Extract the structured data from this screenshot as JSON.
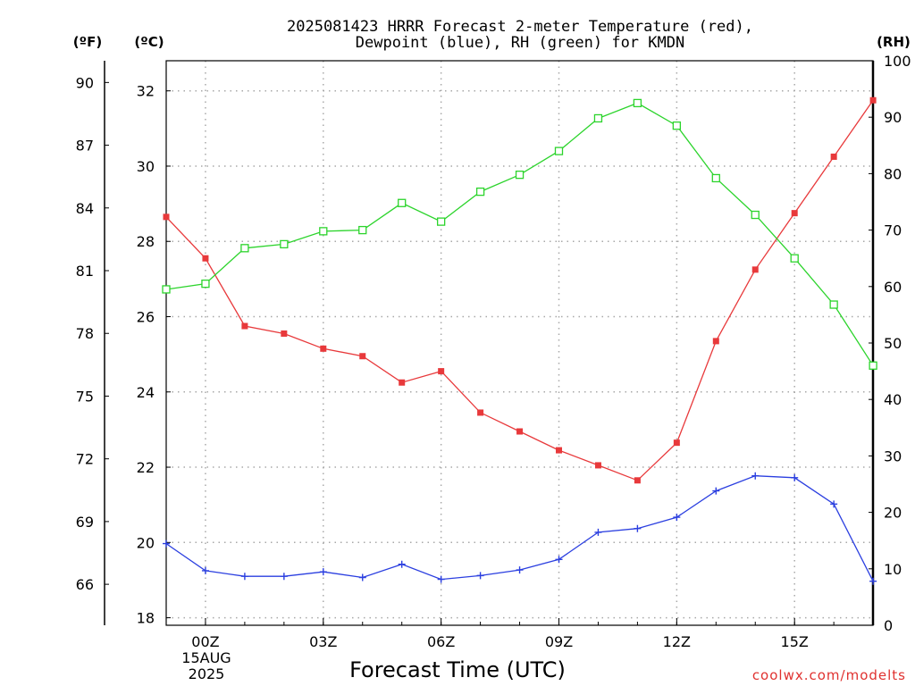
{
  "title_line1": "2025081423 HRRR Forecast 2-meter Temperature (red),",
  "title_line2": "Dewpoint (blue), RH (green) for KMDN",
  "unit_f": "(ºF)",
  "unit_c": "(ºC)",
  "unit_rh": "(RH)",
  "date_line1": "15AUG",
  "date_line2": "2025",
  "credit": "coolwx.com/modelts",
  "colors": {
    "temperature": "#e8393b",
    "dewpoint": "#2b3fe0",
    "rh": "#2cd42c",
    "grid": "#a8a8a8"
  },
  "chart_data": {
    "type": "line",
    "title": "2025081423 HRRR Forecast 2-meter Temperature (red), Dewpoint (blue), RH (green) for KMDN",
    "xlabel": "Forecast Time (UTC)",
    "x": [
      23,
      0,
      1,
      2,
      3,
      4,
      5,
      6,
      7,
      8,
      9,
      10,
      11,
      12,
      13,
      14,
      15,
      16,
      17
    ],
    "x_ticks": [
      "00Z",
      "03Z",
      "06Z",
      "09Z",
      "12Z",
      "15Z"
    ],
    "x_tick_hours": [
      0,
      3,
      6,
      9,
      12,
      15
    ],
    "ylim_c": [
      17.8,
      32.8
    ],
    "yticks_c": [
      18,
      20,
      22,
      24,
      26,
      28,
      30,
      32
    ],
    "yticks_f": [
      66,
      69,
      72,
      75,
      78,
      81,
      84,
      87,
      90
    ],
    "ylim_rh": [
      0,
      100
    ],
    "yticks_rh": [
      0,
      10,
      20,
      30,
      40,
      50,
      60,
      70,
      80,
      90,
      100
    ],
    "grid": true,
    "series": [
      {
        "name": "Temperature",
        "axis": "c",
        "values": [
          28.65,
          27.55,
          25.75,
          25.55,
          25.15,
          24.95,
          24.25,
          24.55,
          23.45,
          22.95,
          22.45,
          22.05,
          21.65,
          22.65,
          25.35,
          27.25,
          28.75,
          30.25,
          31.75
        ]
      },
      {
        "name": "Dewpoint",
        "axis": "c",
        "values": [
          19.97,
          19.25,
          19.1,
          19.1,
          19.22,
          19.07,
          19.42,
          19.02,
          19.12,
          19.27,
          19.55,
          20.27,
          20.37,
          20.67,
          21.37,
          21.77,
          21.72,
          21.02,
          18.97
        ]
      },
      {
        "name": "RH",
        "axis": "rh",
        "values": [
          59.5,
          60.5,
          66.8,
          67.5,
          69.8,
          70,
          74.8,
          71.5,
          76.8,
          79.8,
          84,
          89.8,
          92.5,
          88.5,
          79.2,
          72.7,
          65,
          56.8,
          46
        ]
      }
    ]
  }
}
